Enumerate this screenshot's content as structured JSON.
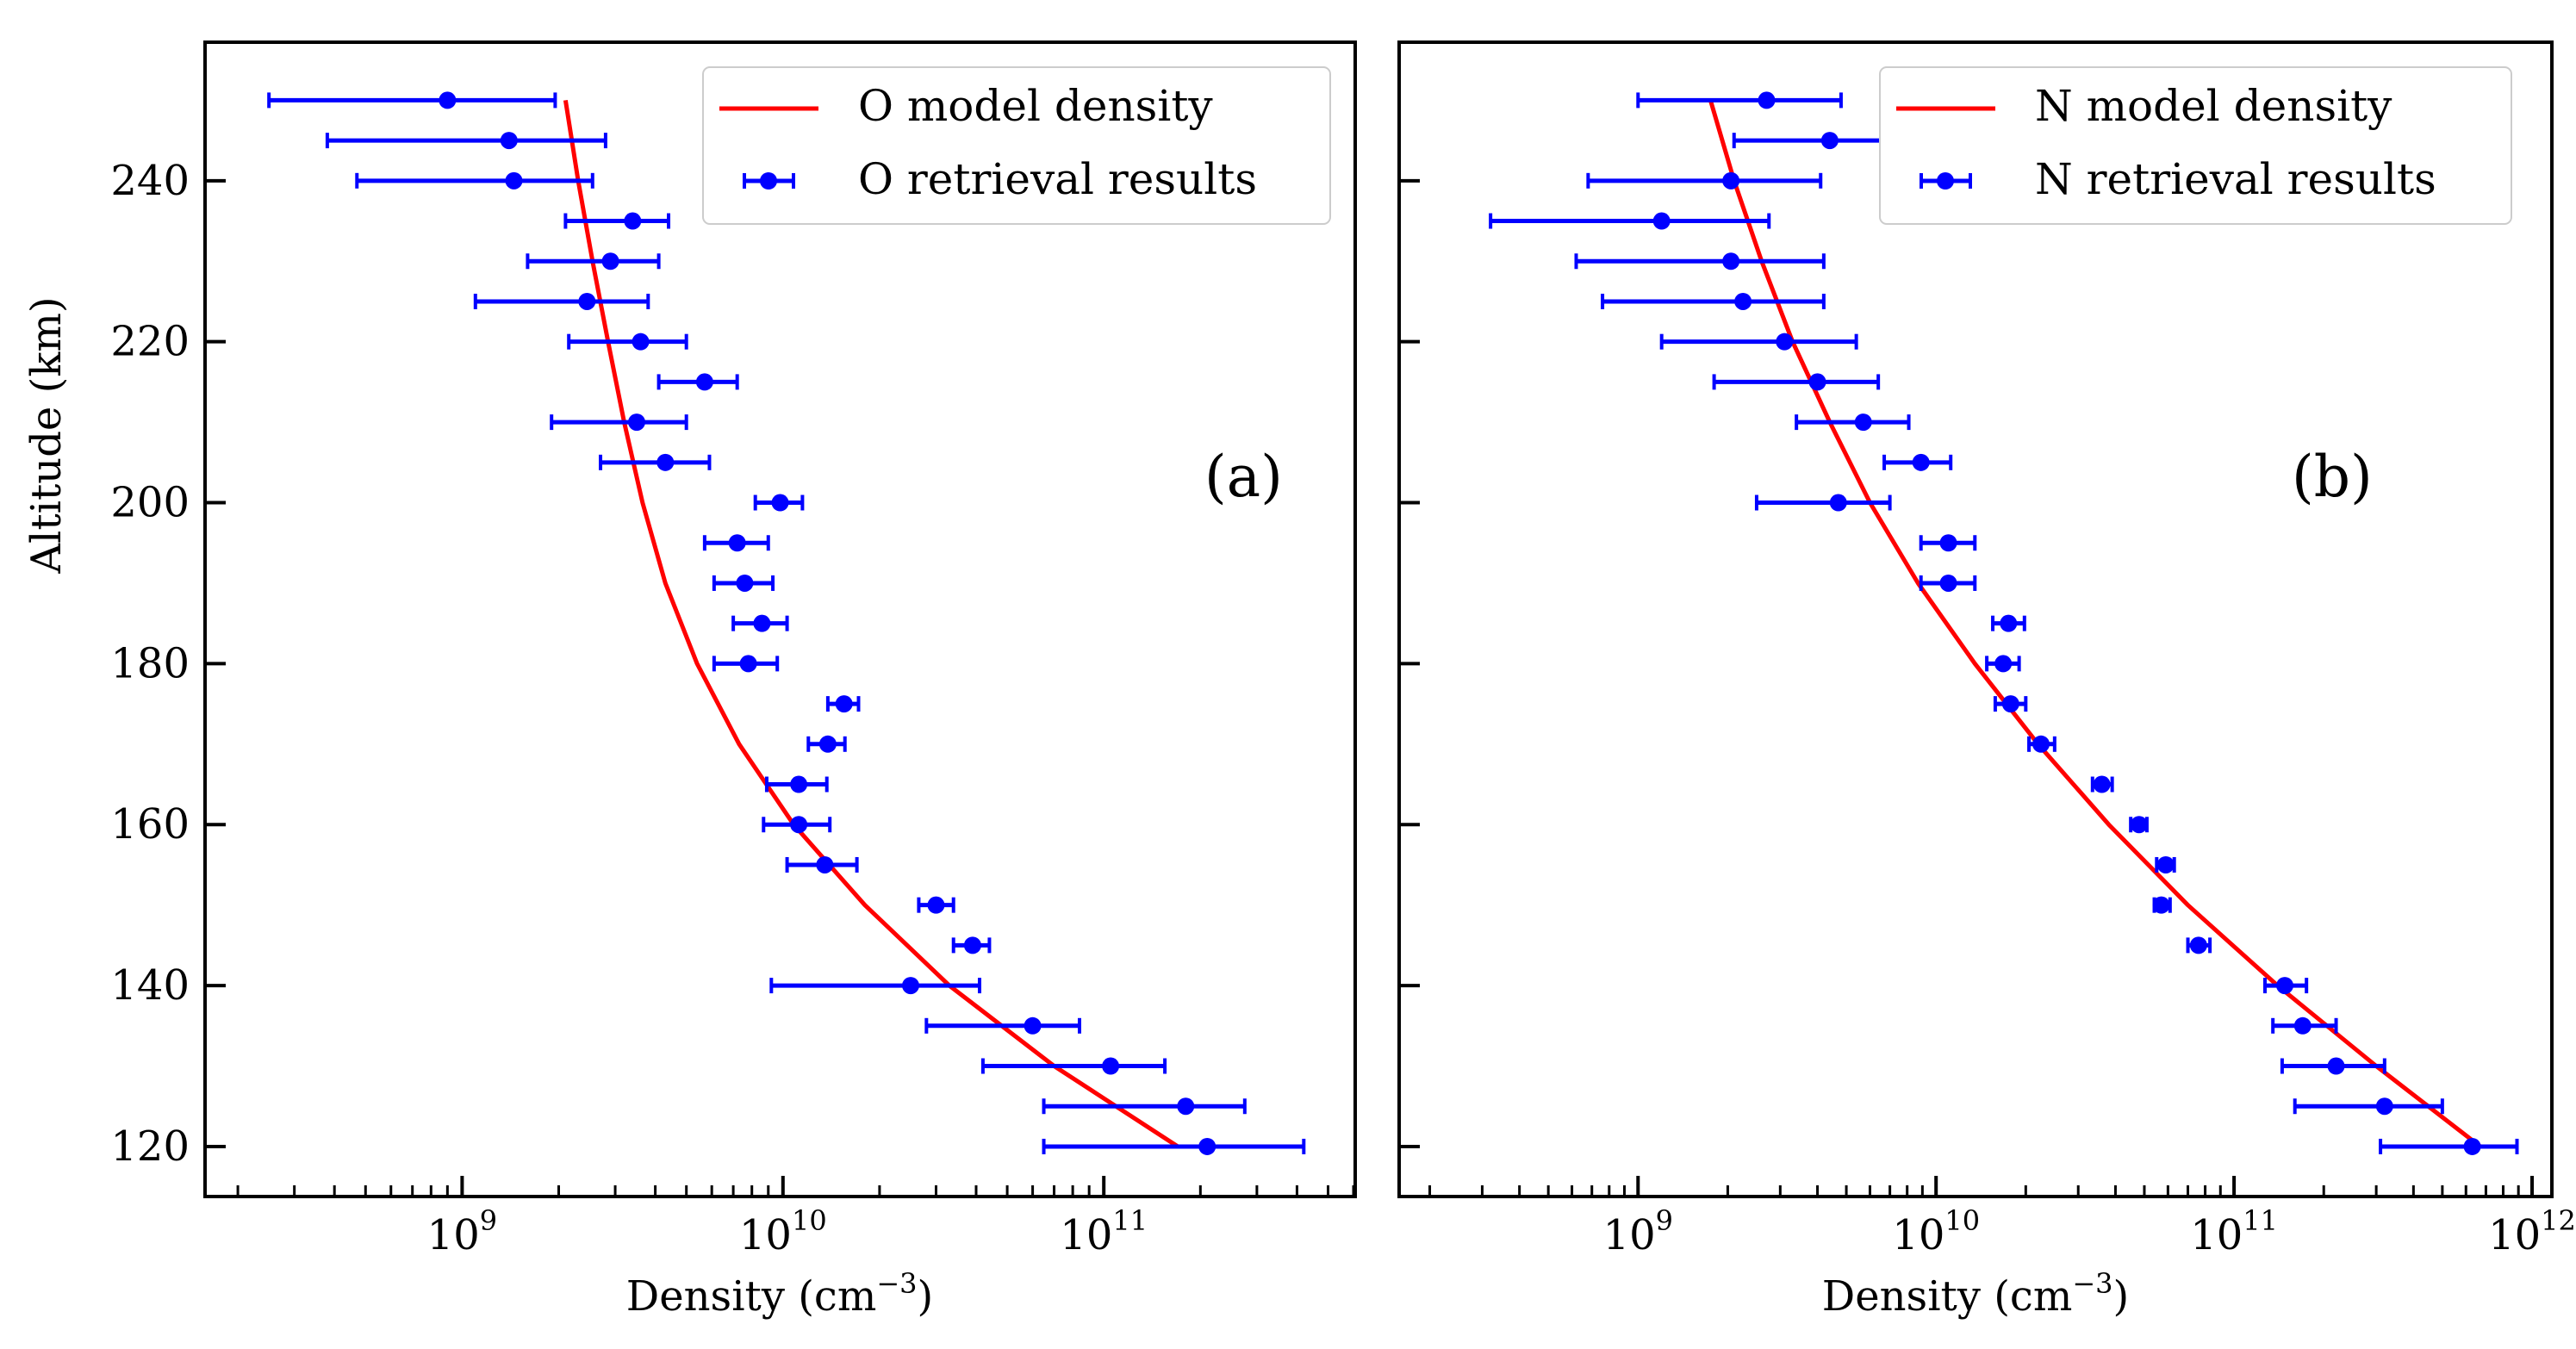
{
  "figure": {
    "ylabel": "Altitude (km)",
    "xlabel_main": "Density (cm",
    "xlabel_exp": "−3",
    "xlabel_close": ")"
  },
  "chart_data": [
    {
      "type": "scatter",
      "panel_label": "(a)",
      "xscale": "log",
      "xlabel": "Density (cm−3)",
      "ylabel": "Altitude (km)",
      "xlim": [
        160000000.0,
        600000000000.0
      ],
      "ylim": [
        114,
        257
      ],
      "xticks": [
        {
          "exp": 9,
          "label": "9"
        },
        {
          "exp": 10,
          "label": "10"
        },
        {
          "exp": 11,
          "label": "11"
        }
      ],
      "yticks": [
        120,
        140,
        160,
        180,
        200,
        220,
        240
      ],
      "legend_position": "top-right",
      "colors": {
        "model": "#ff0000",
        "retrieval": "#0000ff"
      },
      "model": {
        "name": "O model density",
        "altitude": [
          120,
          130,
          140,
          150,
          160,
          170,
          180,
          190,
          200,
          210,
          220,
          230,
          240,
          250
        ],
        "density": [
          170000000000.0,
          70000000000.0,
          33000000000.0,
          18000000000.0,
          10800000000.0,
          7300000000.0,
          5400000000.0,
          4300000000.0,
          3650000000.0,
          3200000000.0,
          2850000000.0,
          2550000000.0,
          2300000000.0,
          2100000000.0
        ]
      },
      "retrieval": {
        "name": "O retrieval results",
        "points": [
          {
            "alt": 250,
            "value": 900000000.0,
            "low": 250000000.0,
            "high": 1950000000.0
          },
          {
            "alt": 245,
            "value": 1400000000.0,
            "low": 380000000.0,
            "high": 2800000000.0
          },
          {
            "alt": 240,
            "value": 1450000000.0,
            "low": 470000000.0,
            "high": 2550000000.0
          },
          {
            "alt": 235,
            "value": 3400000000.0,
            "low": 2100000000.0,
            "high": 4400000000.0
          },
          {
            "alt": 230,
            "value": 2900000000.0,
            "low": 1600000000.0,
            "high": 4100000000.0
          },
          {
            "alt": 225,
            "value": 2450000000.0,
            "low": 1100000000.0,
            "high": 3800000000.0
          },
          {
            "alt": 220,
            "value": 3600000000.0,
            "low": 2150000000.0,
            "high": 5000000000.0
          },
          {
            "alt": 215,
            "value": 5700000000.0,
            "low": 4100000000.0,
            "high": 7200000000.0
          },
          {
            "alt": 210,
            "value": 3500000000.0,
            "low": 1900000000.0,
            "high": 5000000000.0
          },
          {
            "alt": 205,
            "value": 4300000000.0,
            "low": 2700000000.0,
            "high": 5900000000.0
          },
          {
            "alt": 200,
            "value": 9800000000.0,
            "low": 8200000000.0,
            "high": 11500000000.0
          },
          {
            "alt": 195,
            "value": 7200000000.0,
            "low": 5700000000.0,
            "high": 9000000000.0
          },
          {
            "alt": 190,
            "value": 7600000000.0,
            "low": 6100000000.0,
            "high": 9300000000.0
          },
          {
            "alt": 185,
            "value": 8600000000.0,
            "low": 7000000000.0,
            "high": 10300000000.0
          },
          {
            "alt": 180,
            "value": 7800000000.0,
            "low": 6100000000.0,
            "high": 9600000000.0
          },
          {
            "alt": 175,
            "value": 15500000000.0,
            "low": 13800000000.0,
            "high": 17200000000.0
          },
          {
            "alt": 170,
            "value": 13800000000.0,
            "low": 12000000000.0,
            "high": 15600000000.0
          },
          {
            "alt": 165,
            "value": 11200000000.0,
            "low": 8900000000.0,
            "high": 13700000000.0
          },
          {
            "alt": 160,
            "value": 11200000000.0,
            "low": 8700000000.0,
            "high": 14000000000.0
          },
          {
            "alt": 155,
            "value": 13500000000.0,
            "low": 10300000000.0,
            "high": 17000000000.0
          },
          {
            "alt": 150,
            "value": 30000000000.0,
            "low": 26500000000.0,
            "high": 34000000000.0
          },
          {
            "alt": 145,
            "value": 39000000000.0,
            "low": 34000000000.0,
            "high": 44000000000.0
          },
          {
            "alt": 140,
            "value": 25000000000.0,
            "low": 9200000000.0,
            "high": 41000000000.0
          },
          {
            "alt": 135,
            "value": 60000000000.0,
            "low": 28000000000.0,
            "high": 84000000000.0
          },
          {
            "alt": 130,
            "value": 105000000000.0,
            "low": 42000000000.0,
            "high": 155000000000.0
          },
          {
            "alt": 125,
            "value": 180000000000.0,
            "low": 65000000000.0,
            "high": 275000000000.0
          },
          {
            "alt": 120,
            "value": 210000000000.0,
            "low": 65000000000.0,
            "high": 420000000000.0
          }
        ]
      }
    },
    {
      "type": "scatter",
      "panel_label": "(b)",
      "xscale": "log",
      "xlabel": "Density (cm−3)",
      "ylabel": "Altitude (km)",
      "xlim": [
        160000000.0,
        1150000000000.0
      ],
      "ylim": [
        114,
        257
      ],
      "xticks": [
        {
          "exp": 9,
          "label": "9"
        },
        {
          "exp": 10,
          "label": "10"
        },
        {
          "exp": 11,
          "label": "11"
        },
        {
          "exp": 12,
          "label": "12"
        }
      ],
      "yticks": [
        120,
        140,
        160,
        180,
        200,
        220,
        240
      ],
      "legend_position": "top-right",
      "colors": {
        "model": "#ff0000",
        "retrieval": "#0000ff"
      },
      "model": {
        "name": "N model density",
        "altitude": [
          120,
          130,
          140,
          150,
          160,
          170,
          180,
          190,
          200,
          210,
          220,
          230,
          240,
          250
        ],
        "density": [
          670000000000.0,
          300000000000.0,
          140000000000.0,
          70000000000.0,
          38000000000.0,
          22000000000.0,
          13500000000.0,
          8700000000.0,
          6000000000.0,
          4400000000.0,
          3300000000.0,
          2600000000.0,
          2100000000.0,
          1750000000.0
        ]
      },
      "retrieval": {
        "name": "N retrieval results",
        "points": [
          {
            "alt": 250,
            "value": 2700000000.0,
            "low": 1000000000.0,
            "high": 4800000000.0
          },
          {
            "alt": 245,
            "value": 4400000000.0,
            "low": 2100000000.0,
            "high": 6600000000.0
          },
          {
            "alt": 240,
            "value": 2050000000.0,
            "low": 680000000.0,
            "high": 4100000000.0
          },
          {
            "alt": 235,
            "value": 1200000000.0,
            "low": 320000000.0,
            "high": 2750000000.0
          },
          {
            "alt": 230,
            "value": 2050000000.0,
            "low": 620000000.0,
            "high": 4200000000.0
          },
          {
            "alt": 225,
            "value": 2250000000.0,
            "low": 760000000.0,
            "high": 4200000000.0
          },
          {
            "alt": 220,
            "value": 3100000000.0,
            "low": 1200000000.0,
            "high": 5400000000.0
          },
          {
            "alt": 215,
            "value": 4000000000.0,
            "low": 1800000000.0,
            "high": 6400000000.0
          },
          {
            "alt": 210,
            "value": 5700000000.0,
            "low": 3400000000.0,
            "high": 8100000000.0
          },
          {
            "alt": 205,
            "value": 8900000000.0,
            "low": 6700000000.0,
            "high": 11200000000.0
          },
          {
            "alt": 200,
            "value": 4700000000.0,
            "low": 2500000000.0,
            "high": 7000000000.0
          },
          {
            "alt": 195,
            "value": 11000000000.0,
            "low": 8900000000.0,
            "high": 13500000000.0
          },
          {
            "alt": 190,
            "value": 11000000000.0,
            "low": 8900000000.0,
            "high": 13500000000.0
          },
          {
            "alt": 185,
            "value": 17500000000.0,
            "low": 15500000000.0,
            "high": 19800000000.0
          },
          {
            "alt": 180,
            "value": 16800000000.0,
            "low": 14800000000.0,
            "high": 19000000000.0
          },
          {
            "alt": 175,
            "value": 17800000000.0,
            "low": 15800000000.0,
            "high": 20000000000.0
          },
          {
            "alt": 170,
            "value": 22500000000.0,
            "low": 20500000000.0,
            "high": 25000000000.0
          },
          {
            "alt": 165,
            "value": 36000000000.0,
            "low": 33500000000.0,
            "high": 39000000000.0
          },
          {
            "alt": 160,
            "value": 48000000000.0,
            "low": 45000000000.0,
            "high": 51000000000.0
          },
          {
            "alt": 155,
            "value": 59000000000.0,
            "low": 55000000000.0,
            "high": 63000000000.0
          },
          {
            "alt": 150,
            "value": 57000000000.0,
            "low": 54000000000.0,
            "high": 61000000000.0
          },
          {
            "alt": 145,
            "value": 76000000000.0,
            "low": 70000000000.0,
            "high": 83000000000.0
          },
          {
            "alt": 140,
            "value": 148000000000.0,
            "low": 127000000000.0,
            "high": 175000000000.0
          },
          {
            "alt": 135,
            "value": 170000000000.0,
            "low": 135000000000.0,
            "high": 220000000000.0
          },
          {
            "alt": 130,
            "value": 220000000000.0,
            "low": 145000000000.0,
            "high": 320000000000.0
          },
          {
            "alt": 125,
            "value": 320000000000.0,
            "low": 160000000000.0,
            "high": 500000000000.0
          },
          {
            "alt": 120,
            "value": 630000000000.0,
            "low": 310000000000.0,
            "high": 890000000000.0
          }
        ]
      }
    }
  ]
}
